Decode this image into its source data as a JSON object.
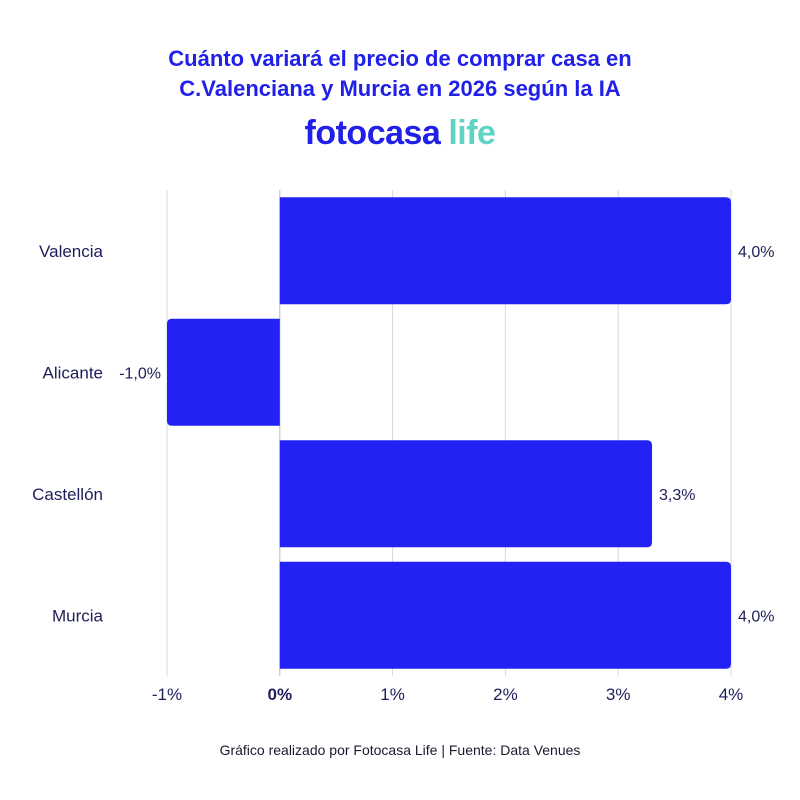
{
  "title": {
    "line1": "Cuánto variará el precio de comprar casa en",
    "line2": "C.Valenciana y Murcia en 2026 según la IA"
  },
  "brand": {
    "name": "fotocasa",
    "suffix": "life"
  },
  "footer": "Gráfico realizado por Fotocasa Life | Fuente: Data Venues",
  "colors": {
    "bar": "#2222f5",
    "title": "#2020e8",
    "text": "#1e1e5a",
    "grid": "#d9d9d9",
    "axis": "#bdbdbd",
    "brand_accent": "#5fd3c4"
  },
  "chart_data": {
    "type": "bar",
    "orientation": "horizontal",
    "categories": [
      "Valencia",
      "Alicante",
      "Castellón",
      "Murcia"
    ],
    "values": [
      4.0,
      -1.0,
      3.3,
      4.0
    ],
    "value_labels": [
      "4,0%",
      "-1,0%",
      "3,3%",
      "4,0%"
    ],
    "xlim": [
      -1,
      4
    ],
    "xticks": [
      -1,
      0,
      1,
      2,
      3,
      4
    ],
    "xtick_labels": [
      "-1%",
      "0%",
      "1%",
      "2%",
      "3%",
      "4%"
    ],
    "grid": true,
    "xlabel": "",
    "ylabel": ""
  }
}
